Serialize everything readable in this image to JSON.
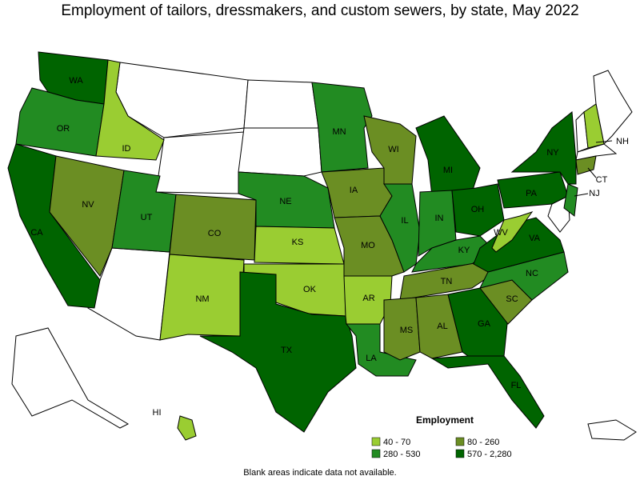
{
  "title": "Employment of tailors, dressmakers, and custom sewers, by state, May 2022",
  "legend": {
    "title": "Employment",
    "items": [
      {
        "label": "40 - 70",
        "color": "#9acd32"
      },
      {
        "label": "80 - 260",
        "color": "#6b8e23"
      },
      {
        "label": "280 - 530",
        "color": "#228b22"
      },
      {
        "label": "570 - 2,280",
        "color": "#006400"
      }
    ]
  },
  "states": [
    {
      "abbr": "WA",
      "color": "#006400"
    },
    {
      "abbr": "OR",
      "color": "#228b22"
    },
    {
      "abbr": "CA",
      "color": "#006400"
    },
    {
      "abbr": "NV",
      "color": "#6b8e23"
    },
    {
      "abbr": "ID",
      "color": "#9acd32"
    },
    {
      "abbr": "UT",
      "color": "#228b22"
    },
    {
      "abbr": "CO",
      "color": "#6b8e23"
    },
    {
      "abbr": "NM",
      "color": "#9acd32"
    },
    {
      "abbr": "NE",
      "color": "#228b22"
    },
    {
      "abbr": "KS",
      "color": "#9acd32"
    },
    {
      "abbr": "OK",
      "color": "#9acd32"
    },
    {
      "abbr": "TX",
      "color": "#006400"
    },
    {
      "abbr": "MN",
      "color": "#228b22"
    },
    {
      "abbr": "IA",
      "color": "#6b8e23"
    },
    {
      "abbr": "MO",
      "color": "#6b8e23"
    },
    {
      "abbr": "AR",
      "color": "#9acd32"
    },
    {
      "abbr": "LA",
      "color": "#228b22"
    },
    {
      "abbr": "WI",
      "color": "#6b8e23"
    },
    {
      "abbr": "IL",
      "color": "#228b22"
    },
    {
      "abbr": "MI",
      "color": "#006400"
    },
    {
      "abbr": "IN",
      "color": "#228b22"
    },
    {
      "abbr": "OH",
      "color": "#006400"
    },
    {
      "abbr": "KY",
      "color": "#228b22"
    },
    {
      "abbr": "TN",
      "color": "#6b8e23"
    },
    {
      "abbr": "MS",
      "color": "#6b8e23"
    },
    {
      "abbr": "AL",
      "color": "#6b8e23"
    },
    {
      "abbr": "GA",
      "color": "#006400"
    },
    {
      "abbr": "FL",
      "color": "#006400"
    },
    {
      "abbr": "SC",
      "color": "#6b8e23"
    },
    {
      "abbr": "NC",
      "color": "#228b22"
    },
    {
      "abbr": "VA",
      "color": "#006400"
    },
    {
      "abbr": "WV",
      "color": "#9acd32"
    },
    {
      "abbr": "PA",
      "color": "#006400"
    },
    {
      "abbr": "NY",
      "color": "#006400"
    },
    {
      "abbr": "NJ",
      "color": "#228b22"
    },
    {
      "abbr": "CT",
      "color": "#6b8e23"
    },
    {
      "abbr": "NH",
      "color": "#9acd32"
    },
    {
      "abbr": "HI",
      "color": "#9acd32"
    }
  ],
  "footnote": "Blank areas indicate data not available."
}
